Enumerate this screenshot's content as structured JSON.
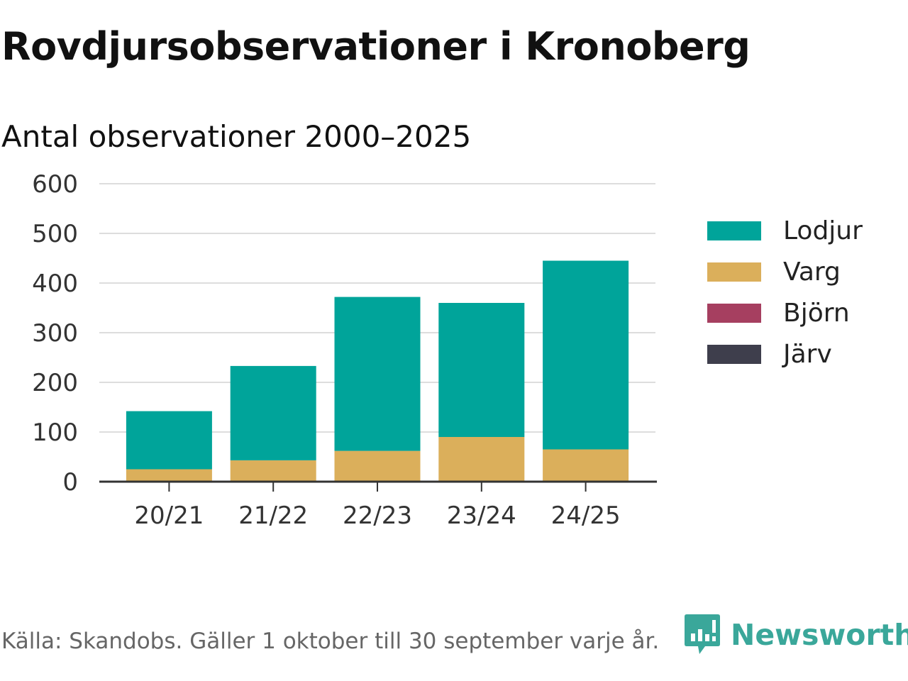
{
  "header": {
    "title": "Rovdjursobservationer i Kronoberg",
    "subtitle": "Antal observationer 2000–2025"
  },
  "chart_data": {
    "type": "bar",
    "stacked": true,
    "categories": [
      "20/21",
      "21/22",
      "22/23",
      "23/24",
      "24/25"
    ],
    "series": [
      {
        "name": "Lodjur",
        "color": "#00a49a",
        "values": [
          117,
          190,
          310,
          270,
          380
        ]
      },
      {
        "name": "Varg",
        "color": "#dbaf5b",
        "values": [
          25,
          43,
          62,
          90,
          65
        ]
      },
      {
        "name": "Björn",
        "color": "#a63f60",
        "values": [
          0,
          0,
          0,
          0,
          0
        ]
      },
      {
        "name": "Järv",
        "color": "#3e3e4c",
        "values": [
          0,
          0,
          0,
          0,
          0
        ]
      }
    ],
    "stack_order": [
      "Varg",
      "Lodjur",
      "Björn",
      "Järv"
    ],
    "ylim": [
      0,
      600
    ],
    "yticks": [
      0,
      100,
      200,
      300,
      400,
      500,
      600
    ],
    "grid": true,
    "legend_position": "right"
  },
  "footer": {
    "source": "Källa: Skandobs. Gäller 1 oktober till 30 september varje år.",
    "brand": "Newsworthy",
    "brand_color": "#3aa79a"
  }
}
